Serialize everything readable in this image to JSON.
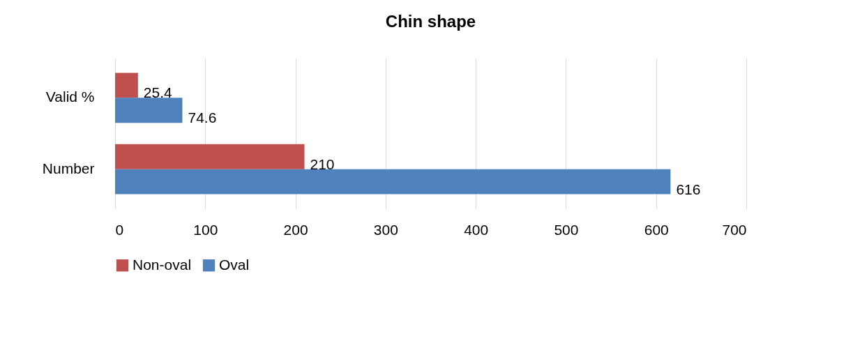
{
  "chart_data": {
    "type": "bar",
    "orientation": "horizontal",
    "title": "Chin shape",
    "categories": [
      "Valid %",
      "Number"
    ],
    "series": [
      {
        "name": "Non-oval",
        "color": "#c0504d",
        "values": [
          25.4,
          210
        ]
      },
      {
        "name": "Oval",
        "color": "#4f81bd",
        "values": [
          74.6,
          616
        ]
      }
    ],
    "xlim": [
      0,
      700
    ],
    "xticks": [
      0,
      100,
      200,
      300,
      400,
      500,
      600,
      700
    ],
    "grid": "x",
    "legend": "bottom",
    "data_labels": true
  }
}
